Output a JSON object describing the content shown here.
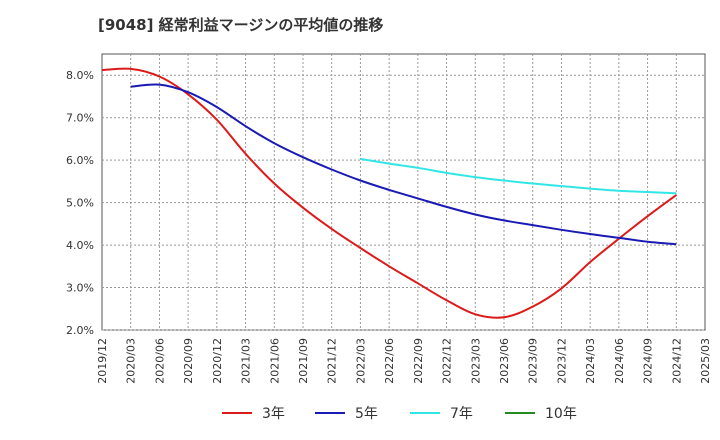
{
  "chart_data": {
    "type": "line",
    "title": "[9048]  経常利益マージンの平均値の推移",
    "xlabel": "",
    "ylabel": "",
    "ylim": [
      2.0,
      8.5
    ],
    "x_ticks": [
      "2019/12",
      "2020/03",
      "2020/06",
      "2020/09",
      "2020/12",
      "2021/03",
      "2021/06",
      "2021/09",
      "2021/12",
      "2022/03",
      "2022/06",
      "2022/09",
      "2022/12",
      "2023/03",
      "2023/06",
      "2023/09",
      "2023/12",
      "2024/03",
      "2024/06",
      "2024/09",
      "2024/12",
      "2025/03"
    ],
    "y_ticks": [
      "2.0%",
      "3.0%",
      "4.0%",
      "5.0%",
      "6.0%",
      "7.0%",
      "8.0%"
    ],
    "y_tick_values": [
      2.0,
      3.0,
      4.0,
      5.0,
      6.0,
      7.0,
      8.0
    ],
    "grid": true,
    "legend_position": "bottom",
    "series": [
      {
        "name": "3年",
        "color": "#dd1a1a",
        "x": [
          "2019/12",
          "2020/03",
          "2020/06",
          "2020/09",
          "2020/12",
          "2021/03",
          "2021/06",
          "2021/09",
          "2021/12",
          "2022/03",
          "2022/06",
          "2022/09",
          "2022/12",
          "2023/03",
          "2023/06",
          "2023/09",
          "2023/12",
          "2024/03",
          "2024/06",
          "2024/09",
          "2024/12"
        ],
        "values": [
          8.12,
          8.15,
          7.97,
          7.55,
          6.95,
          6.15,
          5.45,
          4.88,
          4.38,
          3.93,
          3.5,
          3.1,
          2.7,
          2.37,
          2.3,
          2.55,
          2.98,
          3.6,
          4.15,
          4.68,
          5.18
        ]
      },
      {
        "name": "5年",
        "color": "#1a1ab4",
        "x": [
          "2020/03",
          "2020/06",
          "2020/09",
          "2020/12",
          "2021/03",
          "2021/06",
          "2021/09",
          "2021/12",
          "2022/03",
          "2022/06",
          "2022/09",
          "2022/12",
          "2023/03",
          "2023/06",
          "2023/09",
          "2023/12",
          "2024/03",
          "2024/06",
          "2024/09",
          "2024/12"
        ],
        "values": [
          7.73,
          7.78,
          7.6,
          7.25,
          6.8,
          6.4,
          6.07,
          5.78,
          5.52,
          5.3,
          5.1,
          4.9,
          4.72,
          4.58,
          4.47,
          4.36,
          4.26,
          4.17,
          4.08,
          4.02
        ]
      },
      {
        "name": "7年",
        "color": "#33e6e6",
        "x": [
          "2022/03",
          "2022/06",
          "2022/09",
          "2022/12",
          "2023/03",
          "2023/06",
          "2023/09",
          "2023/12",
          "2024/03",
          "2024/06",
          "2024/09",
          "2024/12"
        ],
        "values": [
          6.03,
          5.92,
          5.82,
          5.7,
          5.6,
          5.52,
          5.45,
          5.39,
          5.33,
          5.28,
          5.25,
          5.22
        ]
      },
      {
        "name": "10年",
        "color": "#228b22",
        "x": [],
        "values": []
      }
    ]
  }
}
